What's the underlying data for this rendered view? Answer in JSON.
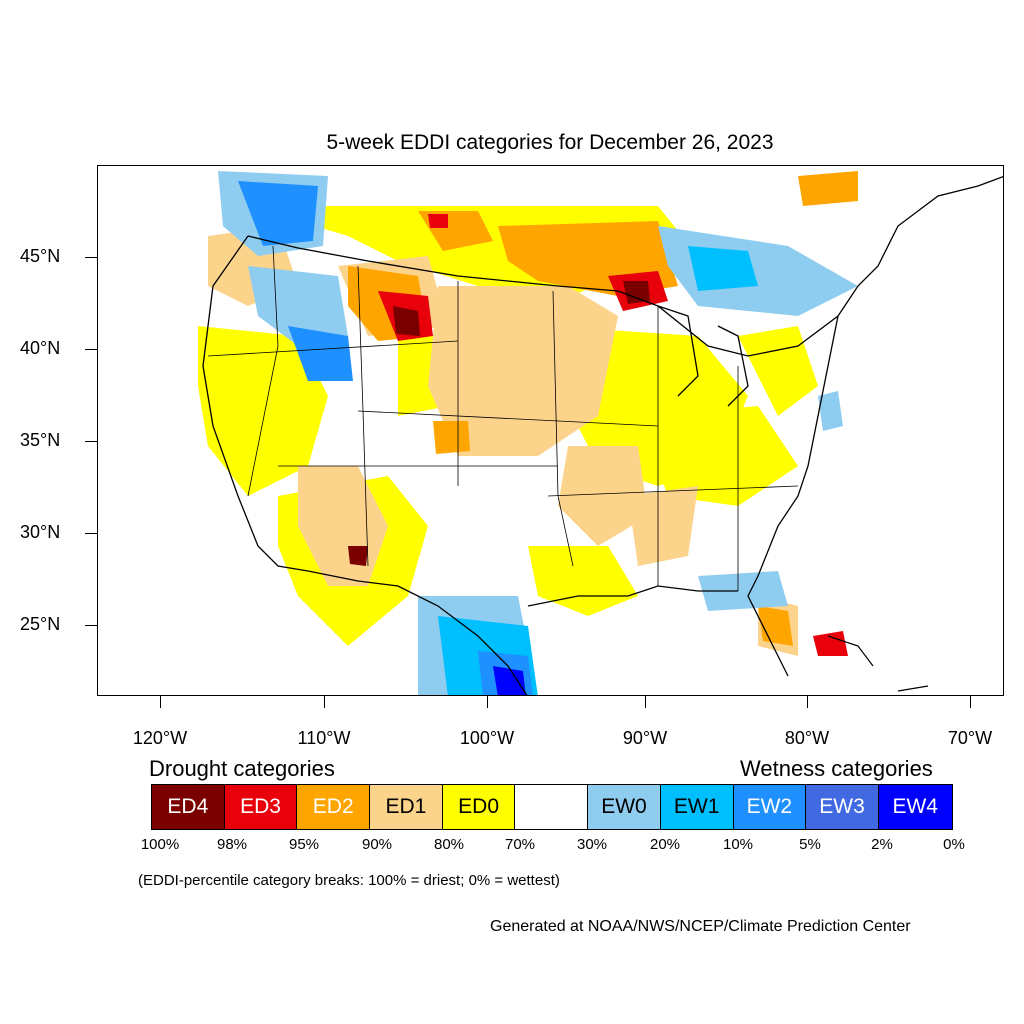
{
  "title": "5-week EDDI categories for December 26, 2023",
  "axes": {
    "y_labels": [
      "45°N",
      "40°N",
      "35°N",
      "30°N",
      "25°N"
    ],
    "x_labels": [
      "120°W",
      "110°W",
      "100°W",
      "90°W",
      "80°W",
      "70°W"
    ]
  },
  "legend": {
    "drought_title": "Drought categories",
    "wetness_title": "Wetness categories",
    "boxes": [
      {
        "label": "ED4",
        "color": "#7a0000",
        "text_color": "#ffffff"
      },
      {
        "label": "ED3",
        "color": "#e8000b",
        "text_color": "#ffffff"
      },
      {
        "label": "ED2",
        "color": "#ffa500",
        "text_color": "#ffffff"
      },
      {
        "label": "ED1",
        "color": "#fcd38a",
        "text_color": "#000000"
      },
      {
        "label": "ED0",
        "color": "#ffff00",
        "text_color": "#000000"
      },
      {
        "label": "",
        "color": "#ffffff",
        "text_color": "#000000"
      },
      {
        "label": "EW0",
        "color": "#8fcdf0",
        "text_color": "#000000"
      },
      {
        "label": "EW1",
        "color": "#00bfff",
        "text_color": "#000000"
      },
      {
        "label": "EW2",
        "color": "#1e90ff",
        "text_color": "#ffffff"
      },
      {
        "label": "EW3",
        "color": "#4169e1",
        "text_color": "#ffffff"
      },
      {
        "label": "EW4",
        "color": "#0000ff",
        "text_color": "#ffffff"
      }
    ],
    "percentiles": [
      "100%",
      "98%",
      "95%",
      "90%",
      "80%",
      "70%",
      "30%",
      "20%",
      "10%",
      "5%",
      "2%",
      "0%"
    ]
  },
  "note": "(EDDI-percentile category breaks: 100% = driest; 0% = wettest)",
  "credit": "Generated at NOAA/NWS/NCEP/Climate Prediction Center"
}
